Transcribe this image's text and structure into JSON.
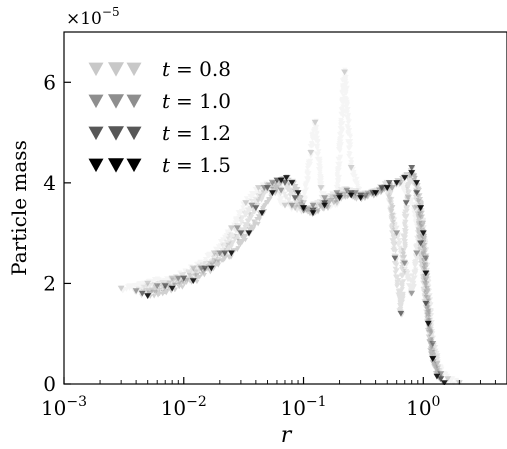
{
  "chart_data": {
    "type": "scatter",
    "x_scale": "log",
    "xlim": [
      0.001,
      5
    ],
    "ylim": [
      0,
      7
    ],
    "xlabel": "r",
    "ylabel": "Particle mass",
    "y_multiplier": "×10",
    "y_multiplier_exp": "−5",
    "x_ticks": [
      {
        "value": 0.001,
        "base": "10",
        "exp": "−3"
      },
      {
        "value": 0.01,
        "base": "10",
        "exp": "−2"
      },
      {
        "value": 0.1,
        "base": "10",
        "exp": "−1"
      },
      {
        "value": 1,
        "base": "10",
        "exp": "0"
      }
    ],
    "y_ticks": [
      {
        "value": 0,
        "label": "0"
      },
      {
        "value": 2,
        "label": "2"
      },
      {
        "value": 4,
        "label": "4"
      },
      {
        "value": 6,
        "label": "6"
      }
    ],
    "legend_position": "top-left",
    "series": [
      {
        "name": "t = 0.8",
        "legend_var": "t",
        "legend_value": "= 0.8",
        "color": "#c8c8c8",
        "x": [
          0.003,
          0.005,
          0.008,
          0.012,
          0.018,
          0.025,
          0.033,
          0.042,
          0.05,
          0.058,
          0.07,
          0.085,
          0.1,
          0.115,
          0.125,
          0.14,
          0.16,
          0.19,
          0.22,
          0.25,
          0.3,
          0.38,
          0.45,
          0.55,
          0.65,
          0.75,
          0.85,
          0.95,
          1.1,
          1.3,
          1.6,
          2.0
        ],
        "y": [
          1.9,
          2.0,
          2.1,
          2.3,
          2.6,
          3.1,
          3.6,
          3.9,
          3.95,
          3.8,
          3.55,
          3.5,
          3.6,
          4.6,
          5.2,
          3.9,
          3.5,
          3.6,
          6.2,
          4.3,
          3.75,
          3.8,
          3.85,
          3.9,
          4.0,
          3.7,
          3.5,
          2.8,
          1.2,
          0.4,
          0.1,
          0.02
        ]
      },
      {
        "name": "t = 1.0",
        "legend_var": "t",
        "legend_value": "= 1.0",
        "color": "#8e8e8e",
        "x": [
          0.004,
          0.006,
          0.009,
          0.014,
          0.02,
          0.028,
          0.037,
          0.047,
          0.055,
          0.065,
          0.08,
          0.1,
          0.12,
          0.15,
          0.19,
          0.23,
          0.27,
          0.33,
          0.4,
          0.5,
          0.6,
          0.7,
          0.8,
          0.88,
          0.95,
          1.05,
          1.2,
          1.4
        ],
        "y": [
          1.85,
          1.95,
          2.1,
          2.3,
          2.6,
          3.1,
          3.55,
          3.9,
          4.0,
          3.85,
          3.55,
          3.45,
          3.55,
          3.7,
          3.8,
          3.85,
          3.8,
          3.75,
          3.8,
          3.9,
          3.0,
          2.4,
          1.8,
          2.6,
          3.5,
          2.5,
          0.8,
          0.2
        ]
      },
      {
        "name": "t = 1.2",
        "legend_var": "t",
        "legend_value": "= 1.2",
        "color": "#575757",
        "x": [
          0.0045,
          0.007,
          0.01,
          0.015,
          0.022,
          0.03,
          0.04,
          0.05,
          0.06,
          0.07,
          0.085,
          0.1,
          0.12,
          0.15,
          0.2,
          0.25,
          0.3,
          0.38,
          0.45,
          0.52,
          0.58,
          0.65,
          0.72,
          0.8,
          0.88,
          0.95,
          1.05,
          1.2,
          1.4
        ],
        "y": [
          1.8,
          1.95,
          2.1,
          2.3,
          2.6,
          3.0,
          3.5,
          3.9,
          4.05,
          4.0,
          3.7,
          3.5,
          3.45,
          3.6,
          3.75,
          3.8,
          3.75,
          3.8,
          3.9,
          4.0,
          2.5,
          1.4,
          3.6,
          4.3,
          3.8,
          2.8,
          1.6,
          0.5,
          0.1
        ]
      },
      {
        "name": "t = 1.5",
        "legend_var": "t",
        "legend_value": "= 1.5",
        "color": "#000000",
        "x": [
          0.005,
          0.008,
          0.012,
          0.017,
          0.025,
          0.035,
          0.045,
          0.055,
          0.065,
          0.072,
          0.08,
          0.09,
          0.1,
          0.12,
          0.15,
          0.2,
          0.25,
          0.3,
          0.4,
          0.5,
          0.6,
          0.7,
          0.8,
          0.88,
          0.95,
          1.0,
          1.05,
          1.1,
          1.2,
          1.3,
          1.5
        ],
        "y": [
          1.75,
          1.9,
          2.05,
          2.3,
          2.6,
          3.0,
          3.4,
          3.8,
          4.05,
          4.1,
          4.0,
          3.8,
          3.5,
          3.4,
          3.55,
          3.7,
          3.75,
          3.7,
          3.8,
          3.9,
          4.0,
          4.1,
          4.2,
          4.0,
          3.5,
          3.0,
          2.2,
          1.2,
          0.5,
          0.15,
          0.02
        ]
      }
    ]
  }
}
